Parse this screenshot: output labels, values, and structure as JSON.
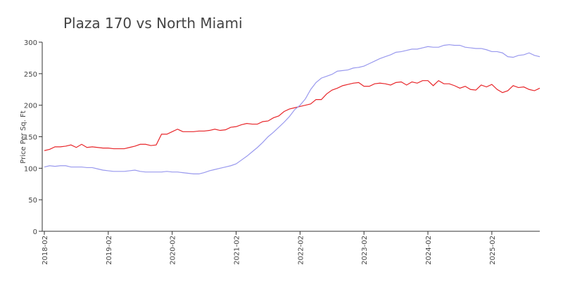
{
  "chart_data": {
    "type": "line",
    "title": "Plaza 170 vs North Miami",
    "ylabel": "Price Per Sq. Ft",
    "x": [
      "2018-02",
      "2018-03",
      "2018-04",
      "2018-05",
      "2018-06",
      "2018-07",
      "2018-08",
      "2018-09",
      "2018-10",
      "2018-11",
      "2018-12",
      "2019-01",
      "2019-02",
      "2019-03",
      "2019-04",
      "2019-05",
      "2019-06",
      "2019-07",
      "2019-08",
      "2019-09",
      "2019-10",
      "2019-11",
      "2019-12",
      "2020-01",
      "2020-02",
      "2020-03",
      "2020-04",
      "2020-05",
      "2020-06",
      "2020-07",
      "2020-08",
      "2020-09",
      "2020-10",
      "2020-11",
      "2020-12",
      "2021-01",
      "2021-02",
      "2021-03",
      "2021-04",
      "2021-05",
      "2021-06",
      "2021-07",
      "2021-08",
      "2021-09",
      "2021-10",
      "2021-11",
      "2021-12",
      "2022-01",
      "2022-02",
      "2022-03",
      "2022-04",
      "2022-05",
      "2022-06",
      "2022-07",
      "2022-08",
      "2022-09",
      "2022-10",
      "2022-11",
      "2022-12",
      "2023-01",
      "2023-02",
      "2023-03",
      "2023-04",
      "2023-05",
      "2023-06",
      "2023-07",
      "2023-08",
      "2023-09",
      "2023-10",
      "2023-11",
      "2023-12",
      "2024-01",
      "2024-02",
      "2024-03",
      "2024-04",
      "2024-05",
      "2024-06",
      "2024-07",
      "2024-08",
      "2024-09",
      "2024-10",
      "2024-11",
      "2024-12",
      "2025-01",
      "2025-02",
      "2025-03",
      "2025-04",
      "2025-05",
      "2025-06",
      "2025-07",
      "2025-08",
      "2025-09",
      "2025-10",
      "2025-11"
    ],
    "series": [
      {
        "color": "#e8262a",
        "values": [
          128,
          130,
          134,
          134,
          135,
          137,
          133,
          138,
          133,
          134,
          133,
          132,
          132,
          131,
          131,
          131,
          133,
          135,
          138,
          138,
          136,
          137,
          154,
          154,
          158,
          162,
          158,
          158,
          158,
          159,
          159,
          160,
          162,
          160,
          161,
          165,
          166,
          169,
          171,
          170,
          170,
          174,
          175,
          180,
          183,
          190,
          194,
          196,
          198,
          200,
          202,
          209,
          209,
          218,
          224,
          227,
          231,
          233,
          235,
          236,
          230,
          230,
          234,
          235,
          234,
          232,
          236,
          237,
          232,
          237,
          235,
          239,
          239,
          231,
          239,
          234,
          234,
          231,
          227,
          230,
          225,
          224,
          232,
          229,
          233,
          225,
          220,
          223,
          231,
          228,
          229,
          225,
          223,
          227
        ]
      },
      {
        "color": "#9999ee",
        "values": [
          102,
          104,
          103,
          104,
          104,
          102,
          102,
          102,
          101,
          101,
          99,
          97,
          96,
          95,
          95,
          95,
          96,
          97,
          95,
          94,
          94,
          94,
          94,
          95,
          94,
          94,
          93,
          92,
          91,
          91,
          93,
          96,
          98,
          100,
          102,
          104,
          107,
          113,
          119,
          126,
          133,
          141,
          150,
          157,
          165,
          173,
          182,
          193,
          200,
          210,
          225,
          236,
          243,
          246,
          249,
          254,
          255,
          256,
          259,
          260,
          262,
          266,
          270,
          274,
          277,
          280,
          284,
          285,
          287,
          289,
          289,
          291,
          293,
          292,
          292,
          295,
          296,
          295,
          295,
          292,
          291,
          290,
          290,
          288,
          285,
          285,
          283,
          277,
          276,
          279,
          280,
          283,
          279,
          277
        ]
      }
    ],
    "ylim": [
      0,
      300
    ],
    "yticks": [
      0,
      50,
      100,
      150,
      200,
      250,
      300
    ],
    "xticks": [
      "2018-02",
      "2019-02",
      "2020-02",
      "2021-02",
      "2022-02",
      "2023-02",
      "2024-02",
      "2025-02"
    ]
  }
}
